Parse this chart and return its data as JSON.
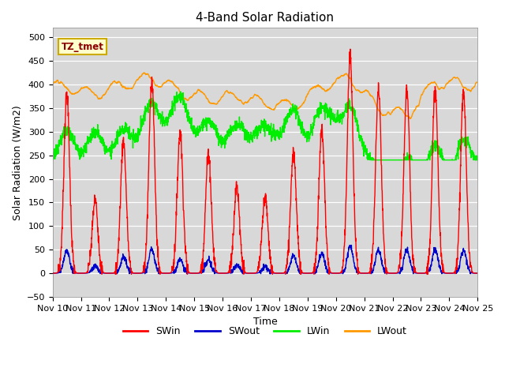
{
  "title": "4-Band Solar Radiation",
  "xlabel": "Time",
  "ylabel": "Solar Radiation (W/m2)",
  "ylim": [
    -50,
    520
  ],
  "annotation": "TZ_tmet",
  "legend_labels": [
    "SWin",
    "SWout",
    "LWin",
    "LWout"
  ],
  "colors": {
    "SWin": "#ff0000",
    "SWout": "#0000cc",
    "LWin": "#00ee00",
    "LWout": "#ff9900"
  },
  "plot_bg": "#d8d8d8",
  "xtick_labels": [
    "Nov 10",
    "Nov 11",
    "Nov 12",
    "Nov 13",
    "Nov 14",
    "Nov 15",
    "Nov 16",
    "Nov 17",
    "Nov 18",
    "Nov 19",
    "Nov 20",
    "Nov 21",
    "Nov 22",
    "Nov 23",
    "Nov 24",
    "Nov 25"
  ],
  "yticks": [
    -50,
    0,
    50,
    100,
    150,
    200,
    250,
    300,
    350,
    400,
    450,
    500
  ],
  "grid_color": "#ffffff",
  "line_width": 1.0,
  "title_fontsize": 11,
  "label_fontsize": 9,
  "tick_fontsize": 8
}
